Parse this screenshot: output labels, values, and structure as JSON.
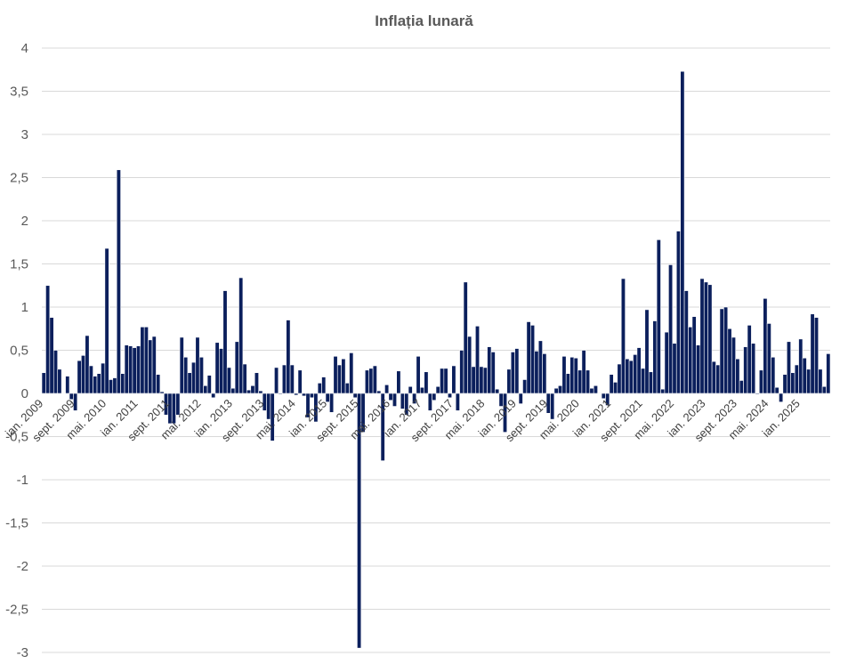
{
  "chart_data": {
    "type": "bar",
    "title": "Inflația lunară",
    "xlabel": "",
    "ylabel": "",
    "ylim": [
      -3,
      4
    ],
    "yticks": [
      4,
      3.5,
      3,
      2.5,
      2,
      1.5,
      1,
      0.5,
      0,
      -0.5,
      -1,
      -1.5,
      -2,
      -2.5,
      -3
    ],
    "ytick_labels": [
      "4",
      "3,5",
      "3",
      "2,5",
      "2",
      "1,5",
      "1",
      "0,5",
      "0",
      "-0,5",
      "-1",
      "-1,5",
      "-2",
      "-2,5",
      "-3"
    ],
    "grid": true,
    "legend": "none",
    "bar_color": "#0b1f5c",
    "x_tick_labels": [
      {
        "label": "ian. 2009",
        "index": 0
      },
      {
        "label": "sept. 2009",
        "index": 8
      },
      {
        "label": "mai. 2010",
        "index": 16
      },
      {
        "label": "ian. 2011",
        "index": 24
      },
      {
        "label": "sept. 2011",
        "index": 32
      },
      {
        "label": "mai. 2012",
        "index": 40
      },
      {
        "label": "ian. 2013",
        "index": 48
      },
      {
        "label": "sept. 2013",
        "index": 56
      },
      {
        "label": "mai. 2014",
        "index": 64
      },
      {
        "label": "ian. 2015",
        "index": 72
      },
      {
        "label": "sept. 2015",
        "index": 80
      },
      {
        "label": "mai. 2016",
        "index": 88
      },
      {
        "label": "ian. 2017",
        "index": 96
      },
      {
        "label": "sept. 2017",
        "index": 104
      },
      {
        "label": "mai. 2018",
        "index": 112
      },
      {
        "label": "ian. 2019",
        "index": 120
      },
      {
        "label": "sept. 2019",
        "index": 128
      },
      {
        "label": "mai. 2020",
        "index": 136
      },
      {
        "label": "ian. 2021",
        "index": 144
      },
      {
        "label": "sept. 2021",
        "index": 152
      },
      {
        "label": "mai. 2022",
        "index": 160
      },
      {
        "label": "ian. 2023",
        "index": 168
      },
      {
        "label": "sept. 2023",
        "index": 176
      },
      {
        "label": "mai. 2024",
        "index": 184
      },
      {
        "label": "ian. 2025",
        "index": 192
      }
    ],
    "values": [
      0.24,
      1.25,
      0.88,
      0.5,
      0.28,
      0.0,
      0.2,
      -0.07,
      -0.2,
      0.38,
      0.44,
      0.67,
      0.32,
      0.2,
      0.23,
      0.35,
      1.68,
      0.16,
      0.18,
      2.59,
      0.23,
      0.56,
      0.55,
      0.53,
      0.55,
      0.77,
      0.77,
      0.62,
      0.66,
      0.22,
      0.02,
      -0.25,
      -0.35,
      -0.35,
      -0.25,
      0.65,
      0.42,
      0.24,
      0.36,
      0.65,
      0.42,
      0.09,
      0.21,
      -0.05,
      0.59,
      0.52,
      1.19,
      0.3,
      0.06,
      0.6,
      1.34,
      0.34,
      0.04,
      0.09,
      0.24,
      0.03,
      -0.2,
      -0.3,
      -0.55,
      0.3,
      -0.01,
      0.33,
      0.85,
      0.33,
      -0.02,
      0.27,
      -0.03,
      -0.28,
      -0.05,
      -0.33,
      0.12,
      0.19,
      -0.1,
      -0.22,
      0.43,
      0.33,
      0.4,
      0.12,
      0.47,
      -0.05,
      -2.95,
      -0.45,
      0.27,
      0.29,
      0.32,
      0.03,
      -0.78,
      0.1,
      -0.08,
      -0.15,
      0.26,
      -0.18,
      -0.25,
      0.08,
      -0.12,
      0.43,
      0.07,
      0.25,
      -0.2,
      -0.08,
      0.08,
      0.29,
      0.29,
      -0.05,
      0.32,
      -0.2,
      0.5,
      1.29,
      0.66,
      0.31,
      0.78,
      0.31,
      0.3,
      0.54,
      0.48,
      0.05,
      -0.15,
      -0.45,
      0.28,
      0.48,
      0.52,
      -0.12,
      0.16,
      0.83,
      0.79,
      0.49,
      0.61,
      0.46,
      -0.23,
      -0.3,
      0.06,
      0.09,
      0.43,
      0.23,
      0.42,
      0.41,
      0.27,
      0.5,
      0.27,
      0.06,
      0.09,
      0.0,
      -0.06,
      -0.14,
      0.22,
      0.13,
      0.34,
      1.33,
      0.4,
      0.38,
      0.45,
      0.53,
      0.29,
      0.97,
      0.25,
      0.84,
      1.78,
      0.05,
      0.71,
      1.49,
      0.58,
      1.88,
      3.73,
      1.19,
      0.77,
      0.89,
      0.56,
      1.33,
      1.29,
      1.26,
      0.37,
      0.33,
      0.98,
      1.0,
      0.75,
      0.65,
      0.4,
      0.15,
      0.54,
      0.79,
      0.58,
      -0.01,
      0.27,
      1.1,
      0.81,
      0.42,
      0.07,
      -0.1,
      0.22,
      0.6,
      0.24,
      0.33,
      0.63,
      0.41,
      0.28,
      0.92,
      0.88,
      0.28,
      0.08,
      0.46
    ]
  }
}
